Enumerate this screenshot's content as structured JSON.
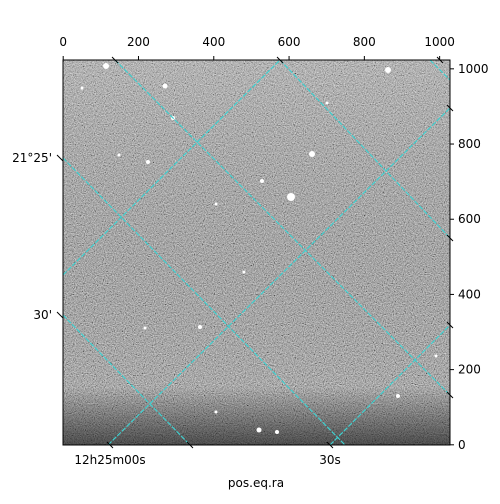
{
  "chart_data": {
    "type": "image",
    "xlabel": "pos.eq.ra",
    "xlim": [
      -0.5,
      1027.5
    ],
    "ylim": [
      -0.5,
      1023.5
    ],
    "xticks": [
      0,
      200,
      400,
      600,
      800,
      1000
    ],
    "yticks": [
      0,
      200,
      400,
      600,
      800,
      1000
    ],
    "ra_ticks": [
      "12h25m00s",
      "30s"
    ],
    "dec_ticks": [
      "21°25'",
      "30'"
    ],
    "grid": true,
    "grid_color": "#3fd0d0"
  }
}
